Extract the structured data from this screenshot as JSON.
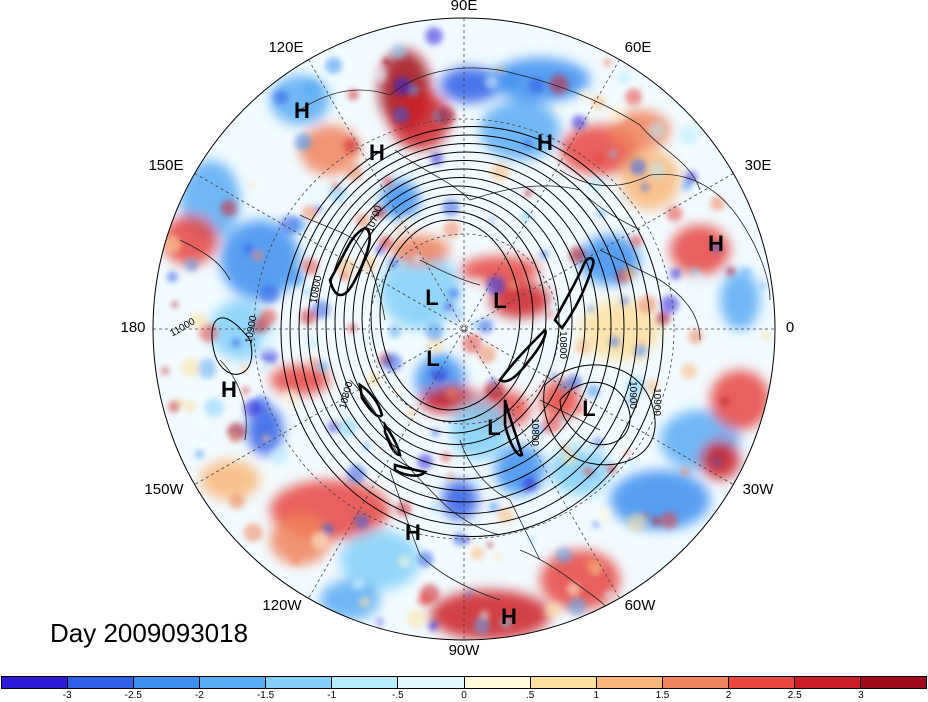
{
  "title": "Day 2009093018",
  "longitude_labels": [
    "90E",
    "60E",
    "30E",
    "0",
    "30W",
    "60W",
    "90W",
    "120W",
    "150W",
    "180",
    "150E",
    "120E"
  ],
  "pressure_centers": [
    {
      "type": "H",
      "name": "high-center-siberia-west"
    },
    {
      "type": "H",
      "name": "high-center-siberia-east"
    },
    {
      "type": "H",
      "name": "high-center-central-asia"
    },
    {
      "type": "H",
      "name": "high-center-europe"
    },
    {
      "type": "H",
      "name": "high-center-north-pacific"
    },
    {
      "type": "H",
      "name": "high-center-north-america"
    },
    {
      "type": "H",
      "name": "high-center-caribbean"
    },
    {
      "type": "L",
      "name": "low-center-arctic-west"
    },
    {
      "type": "L",
      "name": "low-center-arctic-east"
    },
    {
      "type": "L",
      "name": "low-center-canadian-archipelago"
    },
    {
      "type": "L",
      "name": "low-center-hudson-bay"
    },
    {
      "type": "L",
      "name": "low-center-north-atlantic"
    }
  ],
  "contour_labels": [
    "10700",
    "10800",
    "10800",
    "10900",
    "11000",
    "10900",
    "10800",
    "10800",
    "10900"
  ],
  "colorbar": {
    "colors": [
      "#2a1bd8",
      "#2f5ee8",
      "#3d8ff0",
      "#59acf5",
      "#84d0f8",
      "#b8ebfb",
      "#e3f7fd",
      "#fff8d9",
      "#fde0a0",
      "#f9b77a",
      "#f1835c",
      "#e8463f",
      "#cc1d26",
      "#a2091a"
    ],
    "tick_labels": [
      "-3",
      "-2.5",
      "-2",
      "-1.5",
      "-1",
      "-.5",
      "0",
      ".5",
      "1",
      "1.5",
      "2",
      "2.5",
      "3"
    ]
  }
}
